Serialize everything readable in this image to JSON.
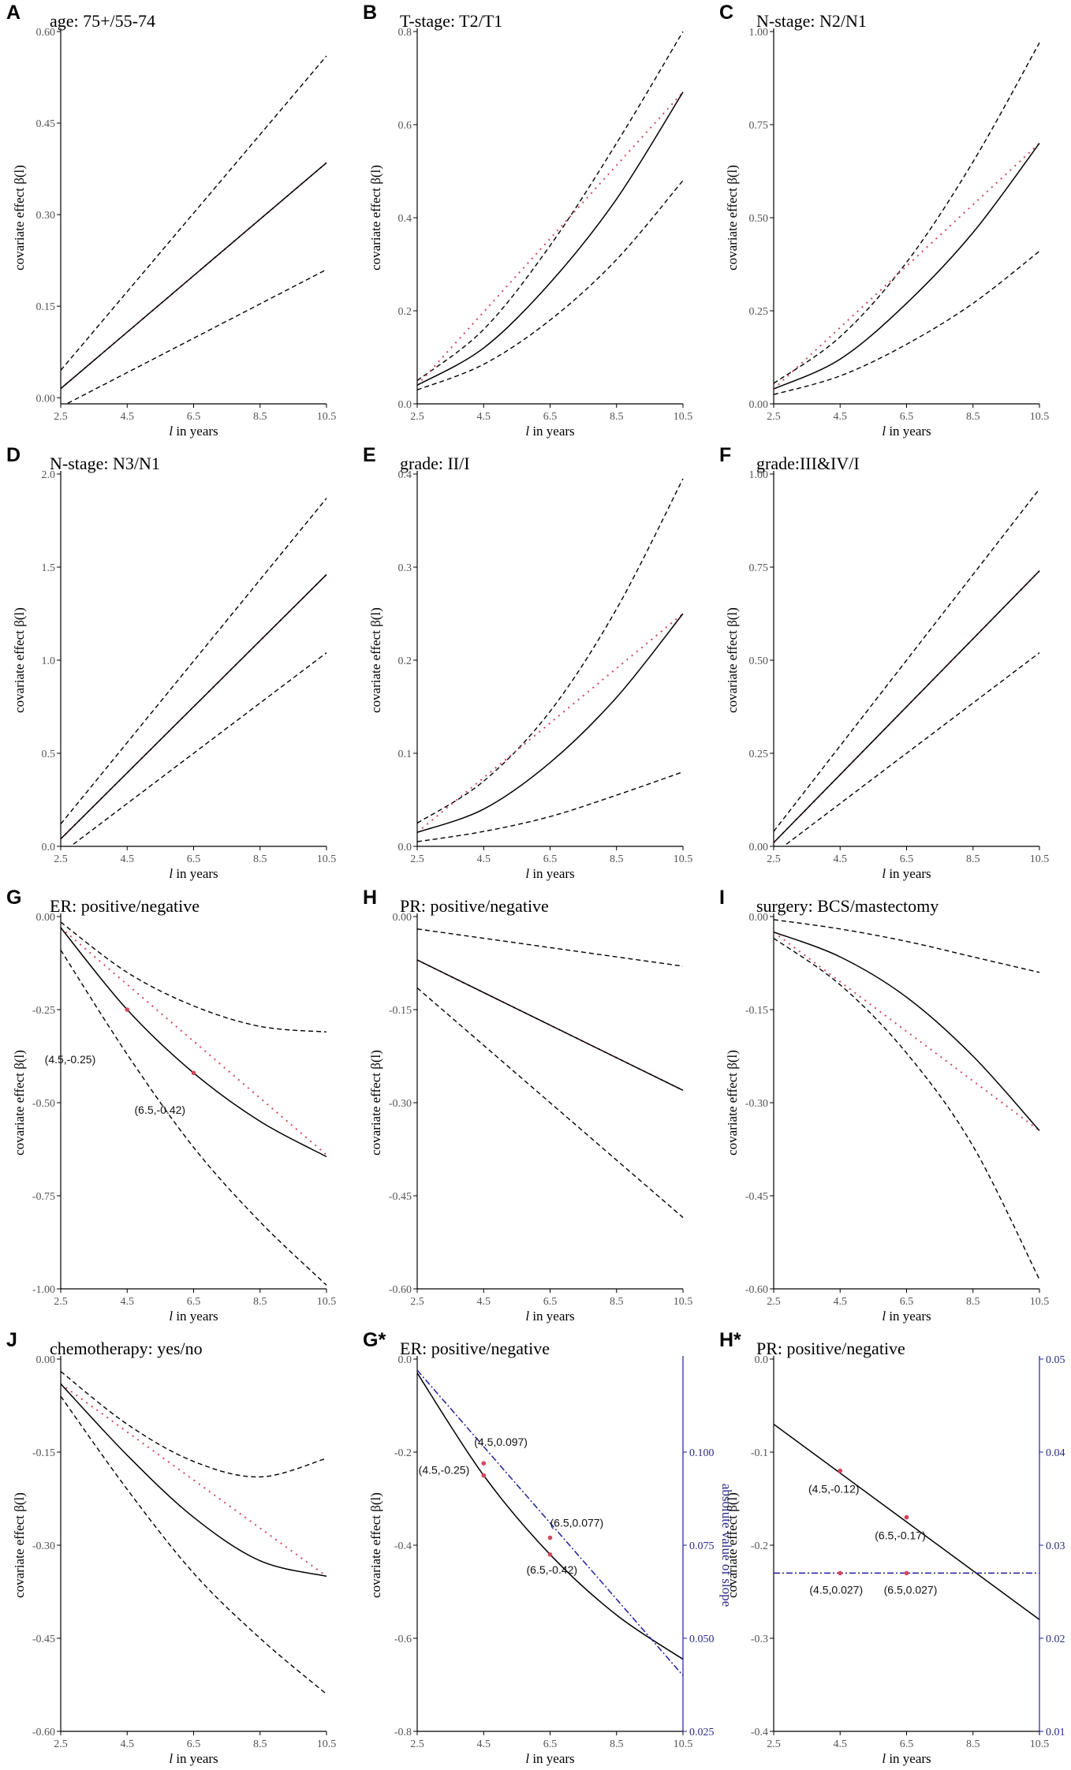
{
  "x_axis_label": "in years",
  "x_axis_italic": "l",
  "y_axis_label": "covariate effect β(l)",
  "colors": {
    "fit": "#000000",
    "ci": "#000000",
    "linear": "#d6455a",
    "slope": "#1f1f9e",
    "point": "#d6455a"
  },
  "chart_data": [
    {
      "label": "A",
      "title": "age: 75+/55-74",
      "type": "line",
      "xlim": [
        2.5,
        10.5
      ],
      "xticks": [
        "2.5",
        "4.5",
        "6.5",
        "8.5",
        "10.5"
      ],
      "ylim": [
        -0.01,
        0.6
      ],
      "yticks": [
        {
          "v": 0.0,
          "t": "0.00"
        },
        {
          "v": 0.15,
          "t": "0.15"
        },
        {
          "v": 0.3,
          "t": "0.30"
        },
        {
          "v": 0.45,
          "t": "0.45"
        },
        {
          "v": 0.6,
          "t": "0.60"
        }
      ],
      "fit": [
        [
          2.5,
          0.015
        ],
        [
          10.5,
          0.385
        ]
      ],
      "lower": [
        [
          2.5,
          -0.015
        ],
        [
          10.5,
          0.21
        ]
      ],
      "upper": [
        [
          2.5,
          0.045
        ],
        [
          10.5,
          0.56
        ]
      ],
      "linear": [
        [
          2.5,
          0.015
        ],
        [
          10.5,
          0.385
        ]
      ]
    },
    {
      "label": "B",
      "title": "T-stage: T2/T1",
      "type": "line",
      "xlim": [
        2.5,
        10.5
      ],
      "xticks": [
        "2.5",
        "4.5",
        "6.5",
        "8.5",
        "10.5"
      ],
      "ylim": [
        0,
        0.8
      ],
      "yticks": [
        {
          "v": 0.0,
          "t": "0.0"
        },
        {
          "v": 0.2,
          "t": "0.2"
        },
        {
          "v": 0.4,
          "t": "0.4"
        },
        {
          "v": 0.6,
          "t": "0.6"
        },
        {
          "v": 0.8,
          "t": "0.8"
        }
      ],
      "fit": [
        [
          2.5,
          0.04
        ],
        [
          4.5,
          0.12
        ],
        [
          6.5,
          0.26
        ],
        [
          8.5,
          0.44
        ],
        [
          10.5,
          0.67
        ]
      ],
      "lower": [
        [
          2.5,
          0.03
        ],
        [
          4.5,
          0.085
        ],
        [
          6.5,
          0.18
        ],
        [
          8.5,
          0.31
        ],
        [
          10.5,
          0.48
        ]
      ],
      "upper": [
        [
          2.5,
          0.05
        ],
        [
          4.5,
          0.16
        ],
        [
          6.5,
          0.34
        ],
        [
          8.5,
          0.56
        ],
        [
          10.5,
          0.8
        ]
      ],
      "linear": [
        [
          2.5,
          0.04
        ],
        [
          10.5,
          0.67
        ]
      ]
    },
    {
      "label": "C",
      "title": "N-stage: N2/N1",
      "type": "line",
      "xlim": [
        2.5,
        10.5
      ],
      "xticks": [
        "2.5",
        "4.5",
        "6.5",
        "8.5",
        "10.5"
      ],
      "ylim": [
        0,
        1.0
      ],
      "yticks": [
        {
          "v": 0.0,
          "t": "0.00"
        },
        {
          "v": 0.25,
          "t": "0.25"
        },
        {
          "v": 0.5,
          "t": "0.50"
        },
        {
          "v": 0.75,
          "t": "0.75"
        },
        {
          "v": 1.0,
          "t": "1.00"
        }
      ],
      "fit": [
        [
          2.5,
          0.04
        ],
        [
          4.5,
          0.12
        ],
        [
          6.5,
          0.27
        ],
        [
          8.5,
          0.46
        ],
        [
          10.5,
          0.7
        ]
      ],
      "lower": [
        [
          2.5,
          0.025
        ],
        [
          4.5,
          0.075
        ],
        [
          6.5,
          0.16
        ],
        [
          8.5,
          0.27
        ],
        [
          10.5,
          0.41
        ]
      ],
      "upper": [
        [
          2.5,
          0.055
        ],
        [
          4.5,
          0.18
        ],
        [
          6.5,
          0.38
        ],
        [
          8.5,
          0.65
        ],
        [
          10.5,
          0.97
        ]
      ],
      "linear": [
        [
          2.5,
          0.04
        ],
        [
          10.5,
          0.7
        ]
      ]
    },
    {
      "label": "D",
      "title": "N-stage: N3/N1",
      "type": "line",
      "xlim": [
        2.5,
        10.5
      ],
      "xticks": [
        "2.5",
        "4.5",
        "6.5",
        "8.5",
        "10.5"
      ],
      "ylim": [
        0,
        2.0
      ],
      "yticks": [
        {
          "v": 0.0,
          "t": "0.0"
        },
        {
          "v": 0.5,
          "t": "0.5"
        },
        {
          "v": 1.0,
          "t": "1.0"
        },
        {
          "v": 1.5,
          "t": "1.5"
        },
        {
          "v": 2.0,
          "t": "2.0"
        }
      ],
      "fit": [
        [
          2.5,
          0.04
        ],
        [
          10.5,
          1.46
        ]
      ],
      "lower": [
        [
          2.5,
          -0.04
        ],
        [
          10.5,
          1.04
        ]
      ],
      "upper": [
        [
          2.5,
          0.12
        ],
        [
          10.5,
          1.87
        ]
      ],
      "linear": [
        [
          2.5,
          0.04
        ],
        [
          10.5,
          1.46
        ]
      ]
    },
    {
      "label": "E",
      "title": "grade: II/I",
      "type": "line",
      "xlim": [
        2.5,
        10.5
      ],
      "xticks": [
        "2.5",
        "4.5",
        "6.5",
        "8.5",
        "10.5"
      ],
      "ylim": [
        0,
        0.4
      ],
      "yticks": [
        {
          "v": 0.0,
          "t": "0.0"
        },
        {
          "v": 0.1,
          "t": "0.1"
        },
        {
          "v": 0.2,
          "t": "0.2"
        },
        {
          "v": 0.3,
          "t": "0.3"
        },
        {
          "v": 0.4,
          "t": "0.4"
        }
      ],
      "fit": [
        [
          2.5,
          0.015
        ],
        [
          4.5,
          0.04
        ],
        [
          6.5,
          0.09
        ],
        [
          8.5,
          0.16
        ],
        [
          10.5,
          0.25
        ]
      ],
      "lower": [
        [
          2.5,
          0.005
        ],
        [
          4.5,
          0.016
        ],
        [
          6.5,
          0.032
        ],
        [
          8.5,
          0.055
        ],
        [
          10.5,
          0.08
        ]
      ],
      "upper": [
        [
          2.5,
          0.025
        ],
        [
          4.5,
          0.07
        ],
        [
          6.5,
          0.145
        ],
        [
          8.5,
          0.255
        ],
        [
          10.5,
          0.395
        ]
      ],
      "linear": [
        [
          2.5,
          0.015
        ],
        [
          10.5,
          0.25
        ]
      ]
    },
    {
      "label": "F",
      "title": "grade:III&IV/I",
      "type": "line",
      "xlim": [
        2.5,
        10.5
      ],
      "xticks": [
        "2.5",
        "4.5",
        "6.5",
        "8.5",
        "10.5"
      ],
      "ylim": [
        0,
        1.0
      ],
      "yticks": [
        {
          "v": 0.0,
          "t": "0.00"
        },
        {
          "v": 0.25,
          "t": "0.25"
        },
        {
          "v": 0.5,
          "t": "0.50"
        },
        {
          "v": 0.75,
          "t": "0.75"
        },
        {
          "v": 1.0,
          "t": "1.00"
        }
      ],
      "fit": [
        [
          2.5,
          0.01
        ],
        [
          10.5,
          0.74
        ]
      ],
      "lower": [
        [
          2.5,
          -0.02
        ],
        [
          10.5,
          0.52
        ]
      ],
      "upper": [
        [
          2.5,
          0.04
        ],
        [
          10.5,
          0.96
        ]
      ],
      "linear": [
        [
          2.5,
          0.01
        ],
        [
          10.5,
          0.74
        ]
      ]
    },
    {
      "label": "G",
      "title": "ER: positive/negative",
      "type": "line",
      "xlim": [
        2.5,
        10.5
      ],
      "xticks": [
        "2.5",
        "4.5",
        "6.5",
        "8.5",
        "10.5"
      ],
      "ylim": [
        -1.0,
        0
      ],
      "yticks": [
        {
          "v": -1.0,
          "t": "-1.00"
        },
        {
          "v": -0.75,
          "t": "-0.75"
        },
        {
          "v": -0.5,
          "t": "-0.50"
        },
        {
          "v": -0.25,
          "t": "-0.25"
        },
        {
          "v": 0.0,
          "t": "0.00"
        }
      ],
      "fit": [
        [
          2.5,
          -0.03
        ],
        [
          4.5,
          -0.25
        ],
        [
          6.5,
          -0.42
        ],
        [
          8.5,
          -0.55
        ],
        [
          10.5,
          -0.645
        ]
      ],
      "lower": [
        [
          2.5,
          -0.09
        ],
        [
          4.5,
          -0.37
        ],
        [
          6.5,
          -0.62
        ],
        [
          8.5,
          -0.82
        ],
        [
          10.5,
          -0.99
        ]
      ],
      "upper": [
        [
          2.5,
          -0.015
        ],
        [
          4.5,
          -0.15
        ],
        [
          6.5,
          -0.24
        ],
        [
          8.5,
          -0.295
        ],
        [
          10.5,
          -0.31
        ]
      ],
      "linear": [
        [
          2.5,
          -0.03
        ],
        [
          10.5,
          -0.64
        ]
      ],
      "points": [
        {
          "x": 4.5,
          "y": -0.25,
          "text": "(4.5,-0.25)"
        },
        {
          "x": 6.5,
          "y": -0.42,
          "text": "(6.5,-0.42)"
        }
      ]
    },
    {
      "label": "H",
      "title": "PR: positive/negative",
      "type": "line",
      "xlim": [
        2.5,
        10.5
      ],
      "xticks": [
        "2.5",
        "4.5",
        "6.5",
        "8.5",
        "10.5"
      ],
      "ylim": [
        -0.6,
        0
      ],
      "yticks": [
        {
          "v": -0.6,
          "t": "-0.60"
        },
        {
          "v": -0.45,
          "t": "-0.45"
        },
        {
          "v": -0.3,
          "t": "-0.30"
        },
        {
          "v": -0.15,
          "t": "-0.15"
        },
        {
          "v": 0.0,
          "t": "0.00"
        }
      ],
      "fit": [
        [
          2.5,
          -0.07
        ],
        [
          10.5,
          -0.28
        ]
      ],
      "lower": [
        [
          2.5,
          -0.115
        ],
        [
          10.5,
          -0.485
        ]
      ],
      "upper": [
        [
          2.5,
          -0.02
        ],
        [
          10.5,
          -0.08
        ]
      ],
      "linear": [
        [
          2.5,
          -0.07
        ],
        [
          10.5,
          -0.28
        ]
      ]
    },
    {
      "label": "I",
      "title": "surgery: BCS/mastectomy",
      "type": "line",
      "xlim": [
        2.5,
        10.5
      ],
      "xticks": [
        "2.5",
        "4.5",
        "6.5",
        "8.5",
        "10.5"
      ],
      "ylim": [
        -0.6,
        0
      ],
      "yticks": [
        {
          "v": -0.6,
          "t": "-0.60"
        },
        {
          "v": -0.45,
          "t": "-0.45"
        },
        {
          "v": -0.3,
          "t": "-0.30"
        },
        {
          "v": -0.15,
          "t": "-0.15"
        },
        {
          "v": 0.0,
          "t": "0.00"
        }
      ],
      "fit": [
        [
          2.5,
          -0.025
        ],
        [
          4.5,
          -0.065
        ],
        [
          6.5,
          -0.13
        ],
        [
          8.5,
          -0.225
        ],
        [
          10.5,
          -0.345
        ]
      ],
      "lower": [
        [
          2.5,
          -0.035
        ],
        [
          4.5,
          -0.11
        ],
        [
          6.5,
          -0.22
        ],
        [
          8.5,
          -0.37
        ],
        [
          10.5,
          -0.585
        ]
      ],
      "upper": [
        [
          2.5,
          -0.005
        ],
        [
          4.5,
          -0.02
        ],
        [
          6.5,
          -0.04
        ],
        [
          8.5,
          -0.065
        ],
        [
          10.5,
          -0.09
        ]
      ],
      "linear": [
        [
          2.5,
          -0.025
        ],
        [
          10.5,
          -0.345
        ]
      ]
    },
    {
      "label": "J",
      "title": "chemotherapy: yes/no",
      "type": "line",
      "xlim": [
        2.5,
        10.5
      ],
      "xticks": [
        "2.5",
        "4.5",
        "6.5",
        "8.5",
        "10.5"
      ],
      "ylim": [
        -0.6,
        0
      ],
      "yticks": [
        {
          "v": -0.6,
          "t": "-0.60"
        },
        {
          "v": -0.45,
          "t": "-0.45"
        },
        {
          "v": -0.3,
          "t": "-0.30"
        },
        {
          "v": -0.15,
          "t": "-0.15"
        },
        {
          "v": 0.0,
          "t": "0.00"
        }
      ],
      "fit": [
        [
          2.5,
          -0.04
        ],
        [
          4.5,
          -0.155
        ],
        [
          6.5,
          -0.255
        ],
        [
          8.5,
          -0.325
        ],
        [
          10.5,
          -0.35
        ]
      ],
      "lower": [
        [
          2.5,
          -0.06
        ],
        [
          4.5,
          -0.21
        ],
        [
          6.5,
          -0.345
        ],
        [
          8.5,
          -0.45
        ],
        [
          10.5,
          -0.54
        ]
      ],
      "upper": [
        [
          2.5,
          -0.02
        ],
        [
          4.5,
          -0.105
        ],
        [
          6.5,
          -0.165
        ],
        [
          8.5,
          -0.19
        ],
        [
          10.5,
          -0.16
        ]
      ],
      "linear": [
        [
          2.5,
          -0.04
        ],
        [
          10.5,
          -0.35
        ]
      ]
    },
    {
      "label": "G*",
      "title": "ER: positive/negative",
      "type": "line",
      "xlim": [
        2.5,
        10.5
      ],
      "xticks": [
        "2.5",
        "4.5",
        "6.5",
        "8.5",
        "10.5"
      ],
      "ylim": [
        -0.8,
        0
      ],
      "yticks": [
        {
          "v": -0.8,
          "t": "-0.8"
        },
        {
          "v": -0.6,
          "t": "-0.6"
        },
        {
          "v": -0.4,
          "t": "-0.4"
        },
        {
          "v": -0.2,
          "t": "-0.2"
        },
        {
          "v": 0.0,
          "t": "0.0"
        }
      ],
      "fit": [
        [
          2.5,
          -0.03
        ],
        [
          4.5,
          -0.25
        ],
        [
          6.5,
          -0.42
        ],
        [
          8.5,
          -0.55
        ],
        [
          10.5,
          -0.645
        ]
      ],
      "y2lim": [
        0.025,
        0.125
      ],
      "y2ticks": [
        {
          "v": 0.025,
          "t": "0.025"
        },
        {
          "v": 0.05,
          "t": "0.050"
        },
        {
          "v": 0.075,
          "t": "0.075"
        },
        {
          "v": 0.1,
          "t": "0.100"
        }
      ],
      "y2label": "absolute value of slope",
      "slope": [
        [
          2.5,
          0.122
        ],
        [
          10.5,
          0.04
        ]
      ],
      "points": [
        {
          "x": 4.5,
          "y": -0.25,
          "text": "(4.5,-0.25)"
        },
        {
          "x": 6.5,
          "y": -0.42,
          "text": "(6.5,-0.42)"
        }
      ],
      "slope_points": [
        {
          "x": 4.5,
          "y": 0.097,
          "text": "(4.5,0.097)"
        },
        {
          "x": 6.5,
          "y": 0.077,
          "text": "(6.5,0.077)"
        }
      ]
    },
    {
      "label": "H*",
      "title": "PR: positive/negative",
      "type": "line",
      "xlim": [
        2.5,
        10.5
      ],
      "xticks": [
        "2.5",
        "4.5",
        "6.5",
        "8.5",
        "10.5"
      ],
      "ylim": [
        -0.4,
        0
      ],
      "yticks": [
        {
          "v": -0.4,
          "t": "-0.4"
        },
        {
          "v": -0.3,
          "t": "-0.3"
        },
        {
          "v": -0.2,
          "t": "-0.2"
        },
        {
          "v": -0.1,
          "t": "-0.1"
        },
        {
          "v": 0.0,
          "t": "0.0"
        }
      ],
      "fit": [
        [
          2.5,
          -0.07
        ],
        [
          10.5,
          -0.28
        ]
      ],
      "y2lim": [
        0.01,
        0.05
      ],
      "y2ticks": [
        {
          "v": 0.01,
          "t": "0.01"
        },
        {
          "v": 0.02,
          "t": "0.02"
        },
        {
          "v": 0.03,
          "t": "0.03"
        },
        {
          "v": 0.04,
          "t": "0.04"
        },
        {
          "v": 0.05,
          "t": "0.05"
        }
      ],
      "y2label": "absolute value of slope",
      "slope": [
        [
          2.5,
          0.027
        ],
        [
          10.5,
          0.027
        ]
      ],
      "points": [
        {
          "x": 4.5,
          "y": -0.12,
          "text": "(4.5,-0.12)"
        },
        {
          "x": 6.5,
          "y": -0.17,
          "text": "(6.5,-0.17)"
        }
      ],
      "slope_points": [
        {
          "x": 4.5,
          "y": 0.027,
          "text": "(4.5,0.027)"
        },
        {
          "x": 6.5,
          "y": 0.027,
          "text": "(6.5,0.027)"
        }
      ]
    }
  ]
}
